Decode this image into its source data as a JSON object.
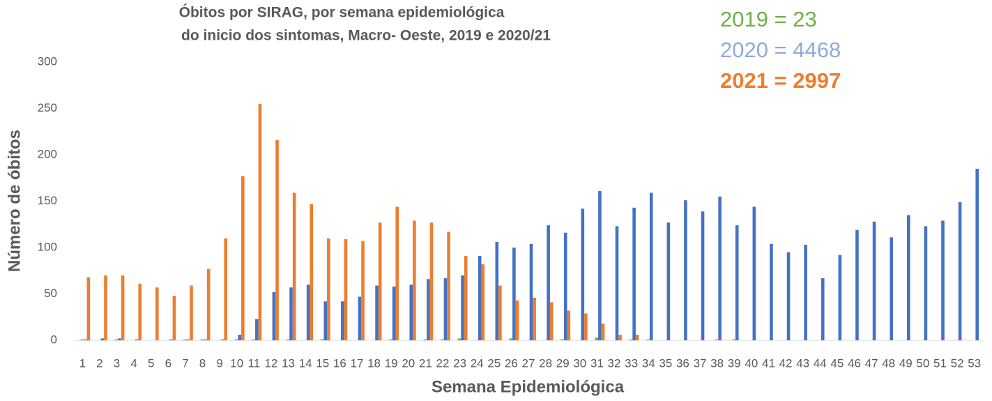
{
  "chart_data": {
    "type": "bar",
    "title": [
      "Óbitos por SIRAG, por semana epidemiológica",
      "do inicio dos sintomas, Macro- Oeste, 2019 e 2020/21"
    ],
    "x_label": "Semana Epidemiológica",
    "y_label": "Número de óbitos",
    "annotations": [
      {
        "text": "2019 = 23",
        "color": "#70ad47",
        "bold": false
      },
      {
        "text": "2020 = 4468",
        "color": "#8faadc",
        "bold": false
      },
      {
        "text": "2021 = 2997",
        "color": "#ed7d31",
        "bold": true
      }
    ],
    "categories": [
      "1",
      "2",
      "3",
      "4",
      "5",
      "6",
      "7",
      "8",
      "9",
      "10",
      "11",
      "12",
      "13",
      "14",
      "15",
      "16",
      "17",
      "18",
      "19",
      "20",
      "21",
      "22",
      "23",
      "24",
      "25",
      "26",
      "27",
      "28",
      "29",
      "30",
      "31",
      "32",
      "33",
      "34",
      "35",
      "36",
      "37",
      "38",
      "39",
      "40",
      "41",
      "42",
      "43",
      "44",
      "45",
      "46",
      "47",
      "48",
      "49",
      "50",
      "51",
      "52",
      "53"
    ],
    "series": [
      {
        "name": "2019",
        "color": "#70ad47",
        "values": [
          1,
          0,
          1,
          0,
          0,
          0,
          1,
          1,
          0,
          1,
          1,
          0,
          1,
          0,
          1,
          0,
          0,
          0,
          1,
          0,
          1,
          1,
          2,
          0,
          0,
          2,
          0,
          0,
          1,
          0,
          3,
          0,
          1,
          1,
          0,
          0,
          0,
          1,
          1,
          0,
          0,
          0,
          0,
          0,
          0,
          0,
          0,
          0,
          0,
          0,
          0,
          0,
          0
        ]
      },
      {
        "name": "2020",
        "color": "#4472c4",
        "values": [
          1,
          2,
          2,
          1,
          0,
          1,
          1,
          1,
          1,
          6,
          23,
          52,
          57,
          60,
          42,
          42,
          47,
          59,
          58,
          60,
          66,
          67,
          70,
          91,
          106,
          100,
          104,
          124,
          116,
          142,
          161,
          123,
          143,
          159,
          127,
          151,
          139,
          155,
          124,
          144,
          104,
          95,
          103,
          67,
          92,
          119,
          128,
          111,
          135,
          123,
          129,
          149,
          185
        ]
      },
      {
        "name": "2021",
        "color": "#ed7d31",
        "values": [
          68,
          70,
          70,
          61,
          57,
          48,
          59,
          77,
          110,
          177,
          255,
          216,
          159,
          147,
          110,
          109,
          107,
          127,
          144,
          129,
          127,
          117,
          91,
          82,
          59,
          43,
          46,
          41,
          32,
          29,
          18,
          6,
          6,
          null,
          null,
          null,
          null,
          null,
          null,
          null,
          null,
          null,
          null,
          null,
          null,
          null,
          null,
          null,
          null,
          null,
          null,
          null,
          null
        ]
      }
    ],
    "ylim": [
      0,
      300
    ],
    "yticks": [
      0,
      50,
      100,
      150,
      200,
      250,
      300
    ],
    "grid": false
  }
}
